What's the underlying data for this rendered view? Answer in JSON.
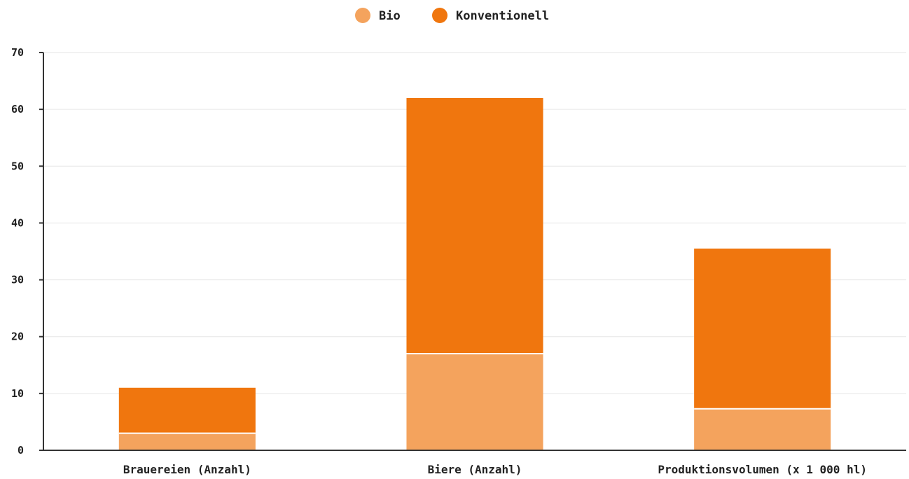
{
  "chart_data": {
    "type": "bar",
    "stacked": true,
    "categories": [
      "Brauereien (Anzahl)",
      "Biere (Anzahl)",
      "Produktionsvolumen (x 1 000 hl)"
    ],
    "series": [
      {
        "name": "Bio",
        "values": [
          3,
          17,
          7.3
        ],
        "color": "#f4a35d"
      },
      {
        "name": "Konventionell",
        "values": [
          8,
          45,
          28.2
        ],
        "color": "#f0760e"
      }
    ],
    "ylim": [
      0,
      70
    ],
    "yticks": [
      0,
      10,
      20,
      30,
      40,
      50,
      60,
      70
    ],
    "grid": true,
    "legend_position": "top-center",
    "title": "",
    "xlabel": "",
    "ylabel": ""
  }
}
